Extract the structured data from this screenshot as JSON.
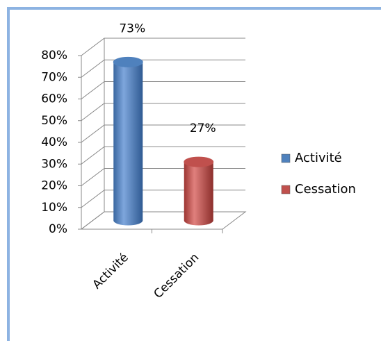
{
  "chart_data": {
    "type": "bar",
    "categories": [
      "Activité",
      "Cessation"
    ],
    "values": [
      73,
      27
    ],
    "value_labels": [
      "73%",
      "27%"
    ],
    "colors": [
      "#4f81bd",
      "#c0504d"
    ],
    "ylim": [
      0,
      80
    ],
    "yticks": [
      {
        "value": 0,
        "label": "0%"
      },
      {
        "value": 10,
        "label": "10%"
      },
      {
        "value": 20,
        "label": "20%"
      },
      {
        "value": 30,
        "label": "30%"
      },
      {
        "value": 40,
        "label": "40%"
      },
      {
        "value": 50,
        "label": "50%"
      },
      {
        "value": 60,
        "label": "60%"
      },
      {
        "value": 70,
        "label": "70%"
      },
      {
        "value": 80,
        "label": "80%"
      }
    ],
    "grid": true,
    "legend": "right"
  }
}
